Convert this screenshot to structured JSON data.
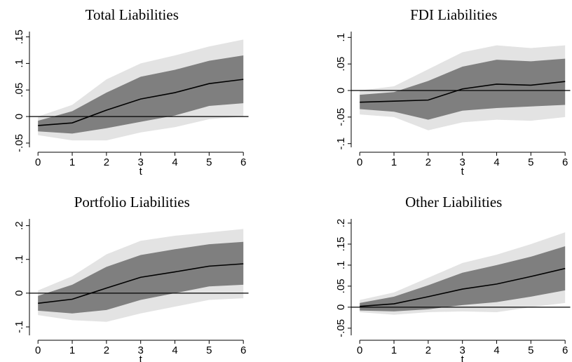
{
  "chart_data": [
    {
      "type": "band-line",
      "title": "Total Liabilities",
      "xlabel": "t",
      "x": [
        0,
        1,
        2,
        3,
        4,
        5,
        6
      ],
      "bands": [
        {
          "color": "#e3e3e3",
          "lower": [
            -0.035,
            -0.045,
            -0.045,
            -0.03,
            -0.02,
            -0.005,
            0
          ],
          "upper": [
            0,
            0.022,
            0.07,
            0.1,
            0.115,
            0.132,
            0.145
          ]
        },
        {
          "color": "#7f7f7f",
          "lower": [
            -0.028,
            -0.032,
            -0.022,
            -0.01,
            0.002,
            0.02,
            0.025
          ],
          "upper": [
            -0.008,
            0.01,
            0.045,
            0.075,
            0.088,
            0.105,
            0.115
          ]
        }
      ],
      "series": [
        {
          "color": "#000000",
          "values": [
            -0.017,
            -0.012,
            0.012,
            0.033,
            0.045,
            0.062,
            0.07
          ]
        }
      ],
      "hline": 0,
      "xlim": [
        -0.25,
        6.15
      ],
      "xticks": [
        0,
        1,
        2,
        3,
        4,
        5,
        6
      ],
      "ylim": [
        -0.058,
        0.16
      ],
      "yticks": [
        {
          "value": -0.05,
          "label": "-.05"
        },
        0,
        {
          "value": 0.05,
          "label": ".05"
        },
        {
          "value": 0.1,
          "label": ".1"
        },
        {
          "value": 0.15,
          "label": ".15"
        }
      ]
    },
    {
      "type": "band-line",
      "title": "FDI Liabilities",
      "xlabel": "t",
      "x": [
        0,
        1,
        2,
        3,
        4,
        5,
        6
      ],
      "bands": [
        {
          "color": "#e3e3e3",
          "lower": [
            -0.045,
            -0.05,
            -0.075,
            -0.06,
            -0.055,
            -0.057,
            -0.05
          ],
          "upper": [
            0,
            0.008,
            0.04,
            0.072,
            0.085,
            0.08,
            0.085
          ]
        },
        {
          "color": "#7f7f7f",
          "lower": [
            -0.035,
            -0.04,
            -0.055,
            -0.038,
            -0.033,
            -0.03,
            -0.027
          ],
          "upper": [
            -0.008,
            -0.003,
            0.018,
            0.045,
            0.058,
            0.055,
            0.06
          ]
        }
      ],
      "series": [
        {
          "color": "#000000",
          "values": [
            -0.022,
            -0.02,
            -0.018,
            0.003,
            0.012,
            0.01,
            0.017
          ]
        }
      ],
      "hline": 0,
      "xlim": [
        -0.25,
        6.15
      ],
      "xticks": [
        0,
        1,
        2,
        3,
        4,
        5,
        6
      ],
      "ylim": [
        -0.107,
        0.111
      ],
      "yticks": [
        {
          "value": -0.1,
          "label": "-.1"
        },
        {
          "value": -0.05,
          "label": "-.05"
        },
        0,
        {
          "value": 0.05,
          "label": ".05"
        },
        {
          "value": 0.1,
          "label": ".1"
        }
      ]
    },
    {
      "type": "band-line",
      "title": "Portfolio Liabilities",
      "xlabel": "t",
      "x": [
        0,
        1,
        2,
        3,
        4,
        5,
        6
      ],
      "bands": [
        {
          "color": "#e3e3e3",
          "lower": [
            -0.065,
            -0.08,
            -0.085,
            -0.06,
            -0.04,
            -0.02,
            -0.015
          ],
          "upper": [
            0.008,
            0.05,
            0.115,
            0.155,
            0.17,
            0.18,
            0.19
          ]
        },
        {
          "color": "#7f7f7f",
          "lower": [
            -0.052,
            -0.06,
            -0.05,
            -0.02,
            0,
            0.02,
            0.025
          ],
          "upper": [
            -0.008,
            0.025,
            0.078,
            0.113,
            0.13,
            0.145,
            0.152
          ]
        }
      ],
      "series": [
        {
          "color": "#000000",
          "values": [
            -0.03,
            -0.018,
            0.015,
            0.047,
            0.063,
            0.08,
            0.087
          ]
        }
      ],
      "hline": 0,
      "xlim": [
        -0.25,
        6.15
      ],
      "xticks": [
        0,
        1,
        2,
        3,
        4,
        5,
        6
      ],
      "ylim": [
        -0.125,
        0.22
      ],
      "yticks": [
        {
          "value": -0.1,
          "label": "-.1"
        },
        0,
        {
          "value": 0.1,
          "label": ".1"
        },
        {
          "value": 0.2,
          "label": ".2"
        }
      ]
    },
    {
      "type": "band-line",
      "title": "Other Liabilities",
      "xlabel": "t",
      "x": [
        0,
        1,
        2,
        3,
        4,
        5,
        6
      ],
      "bands": [
        {
          "color": "#e3e3e3",
          "lower": [
            -0.012,
            -0.018,
            -0.012,
            -0.01,
            -0.012,
            0,
            0.01
          ],
          "upper": [
            0.017,
            0.035,
            0.07,
            0.105,
            0.125,
            0.15,
            0.178
          ]
        },
        {
          "color": "#7f7f7f",
          "lower": [
            -0.008,
            -0.01,
            -0.005,
            0.005,
            0.012,
            0.025,
            0.04
          ],
          "upper": [
            0.01,
            0.025,
            0.052,
            0.082,
            0.1,
            0.12,
            0.145
          ]
        }
      ],
      "series": [
        {
          "color": "#000000",
          "values": [
            0.002,
            0.008,
            0.025,
            0.043,
            0.055,
            0.073,
            0.092
          ]
        }
      ],
      "hline": 0,
      "xlim": [
        -0.25,
        6.15
      ],
      "xticks": [
        0,
        1,
        2,
        3,
        4,
        5,
        6
      ],
      "ylim": [
        -0.067,
        0.21
      ],
      "yticks": [
        {
          "value": -0.05,
          "label": "-.05"
        },
        0,
        {
          "value": 0.05,
          "label": ".05"
        },
        {
          "value": 0.1,
          "label": ".1"
        },
        {
          "value": 0.15,
          "label": ".15"
        },
        {
          "value": 0.2,
          "label": ".2"
        }
      ]
    }
  ]
}
